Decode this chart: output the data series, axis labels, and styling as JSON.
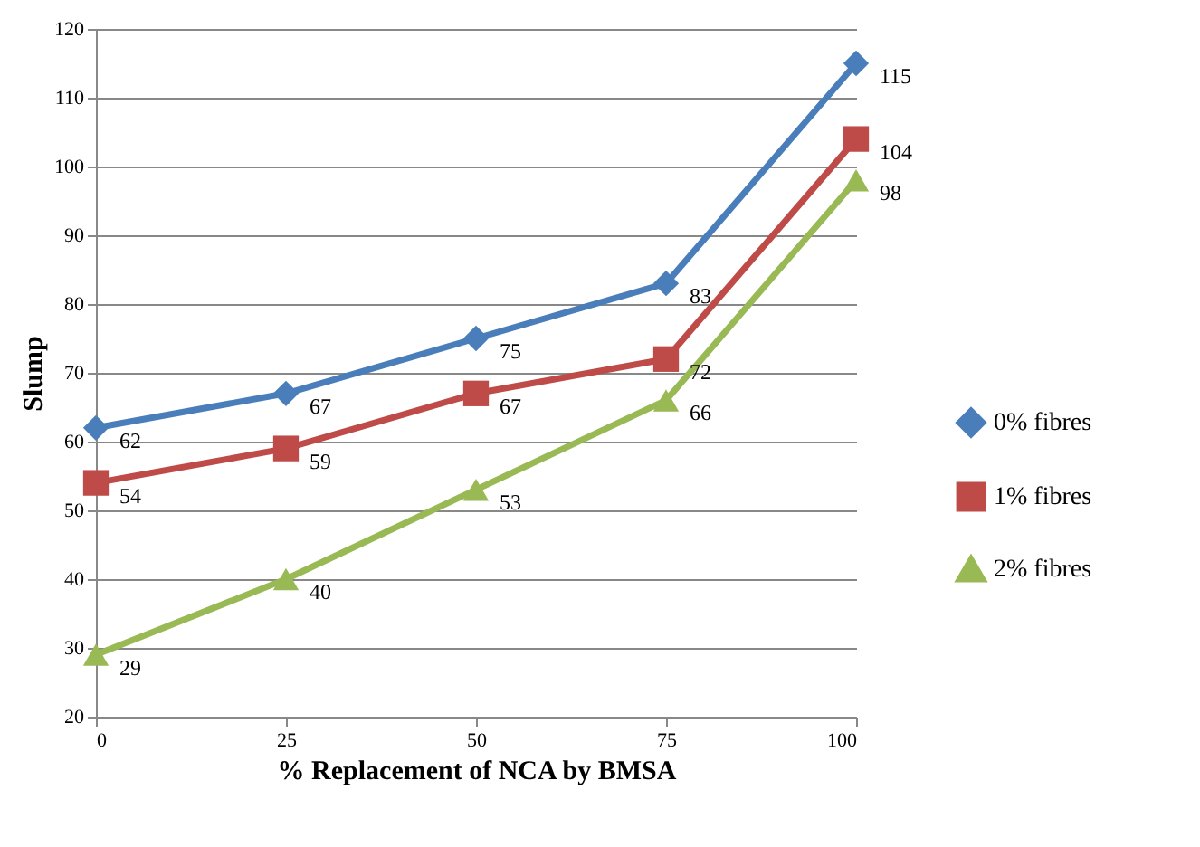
{
  "chart_data": {
    "type": "line",
    "xlabel": "%  Replacement of NCA by BMSA",
    "ylabel": "Slump",
    "categories": [
      "0",
      "25",
      "50",
      "75",
      "100"
    ],
    "series": [
      {
        "name": "0% fibres",
        "color": "#4a7ebb",
        "marker": "diamond",
        "values": [
          62,
          67,
          75,
          83,
          115
        ]
      },
      {
        "name": "1% fibres",
        "color": "#be4b48",
        "marker": "square",
        "values": [
          54,
          59,
          67,
          72,
          104
        ]
      },
      {
        "name": "2% fibres",
        "color": "#98b954",
        "marker": "triangle",
        "values": [
          29,
          40,
          53,
          66,
          98
        ]
      }
    ],
    "ylim": [
      20,
      120
    ],
    "yticks": [
      20,
      30,
      40,
      50,
      60,
      70,
      80,
      90,
      100,
      110,
      120
    ],
    "grid": "y",
    "legend": "right",
    "data_labels": true,
    "line_style": "solid"
  }
}
